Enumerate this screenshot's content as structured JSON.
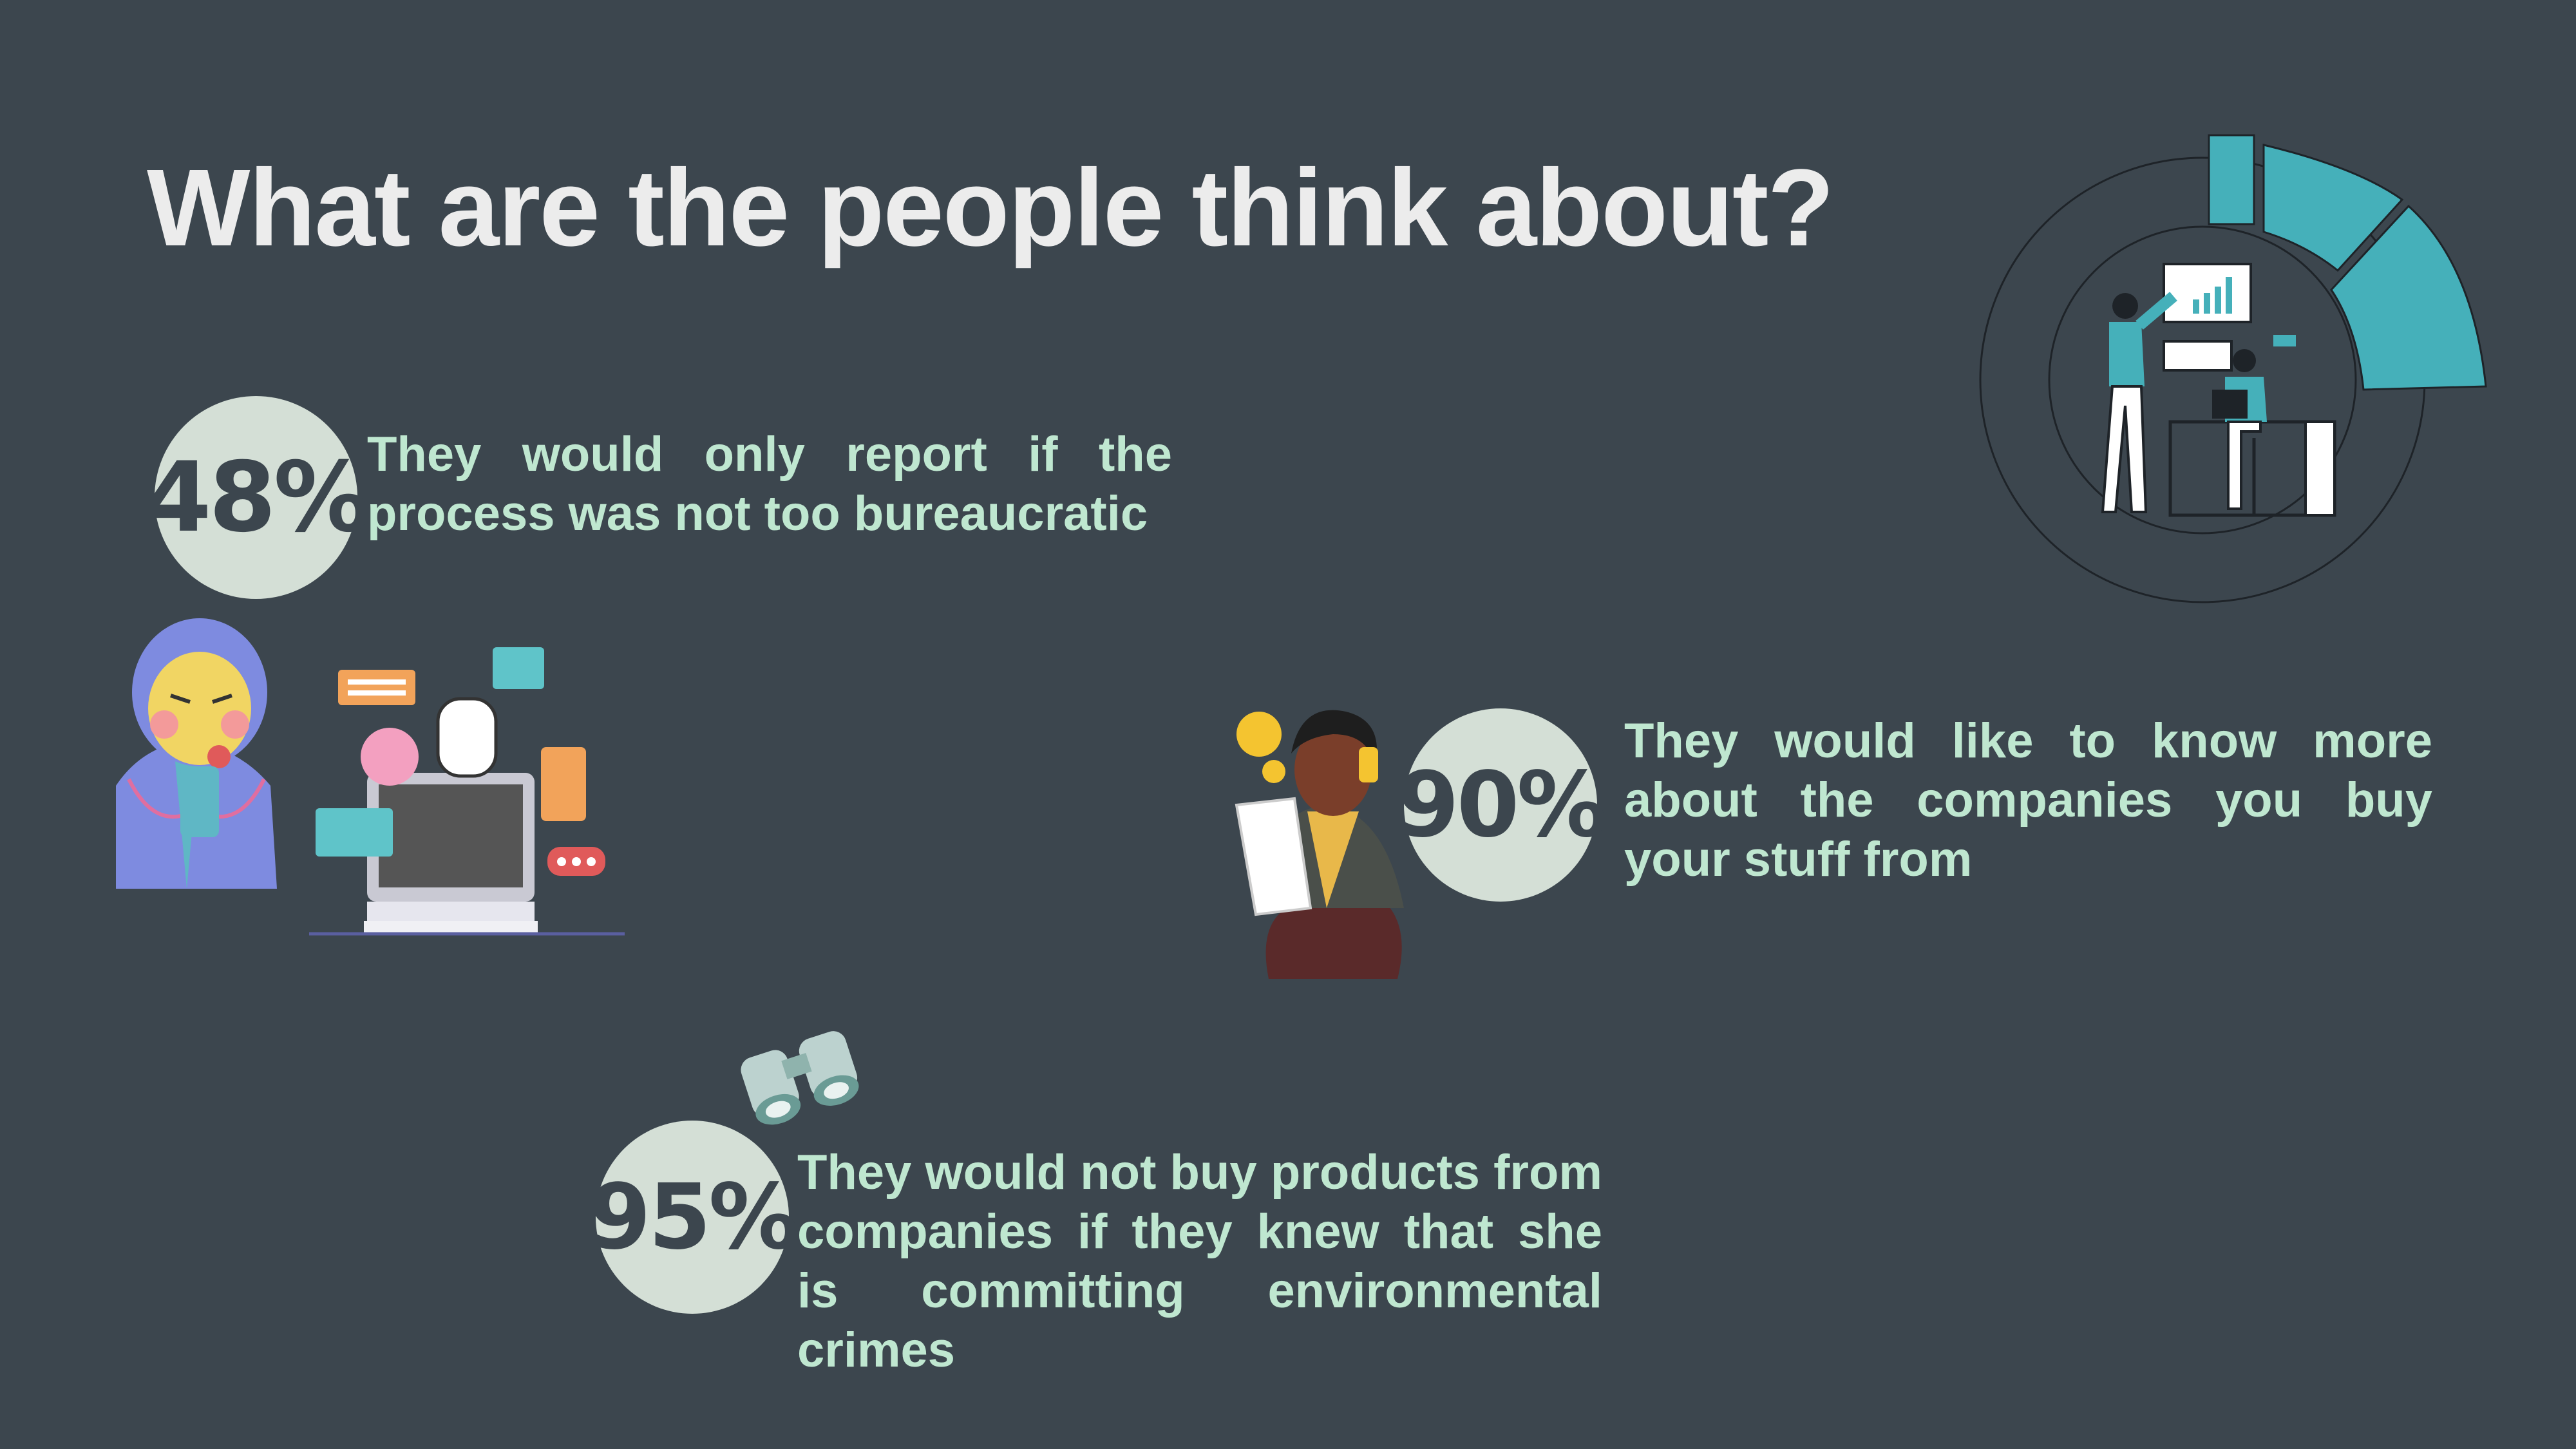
{
  "title": "What are the people think about?",
  "stats": [
    {
      "value": "48%",
      "text": "They would only report if the process was not too bureaucratic"
    },
    {
      "value": "90%",
      "text": "They would like to know more about the companies you buy your stuff from"
    },
    {
      "value": "95%",
      "text": "They would not buy products from companies if they knew that she is committing environmental crimes"
    }
  ],
  "colors": {
    "background": "#3c464e",
    "circle": "#d4dfd6",
    "text": "#bfe7d0",
    "accent": "#45b0ba"
  },
  "illustrations": [
    "frustrated-man-at-computer-illustration",
    "woman-on-phone-illustration",
    "binoculars-icon",
    "office-team-donut-illustration"
  ]
}
